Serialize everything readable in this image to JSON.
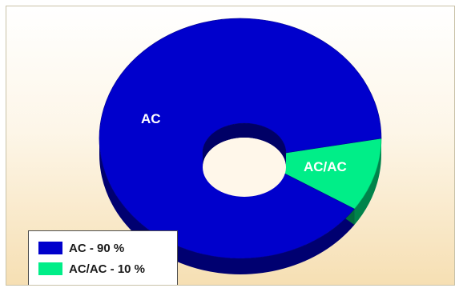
{
  "chart_data": {
    "type": "pie",
    "style": "3d-donut",
    "categories": [
      "AC",
      "AC/AC"
    ],
    "values": [
      90,
      10
    ],
    "colors": [
      "#0000cc",
      "#00ee88"
    ],
    "legend": {
      "placement": "bottom-left",
      "entries": [
        "AC  - 90 %",
        "AC/AC - 10 %"
      ]
    }
  }
}
